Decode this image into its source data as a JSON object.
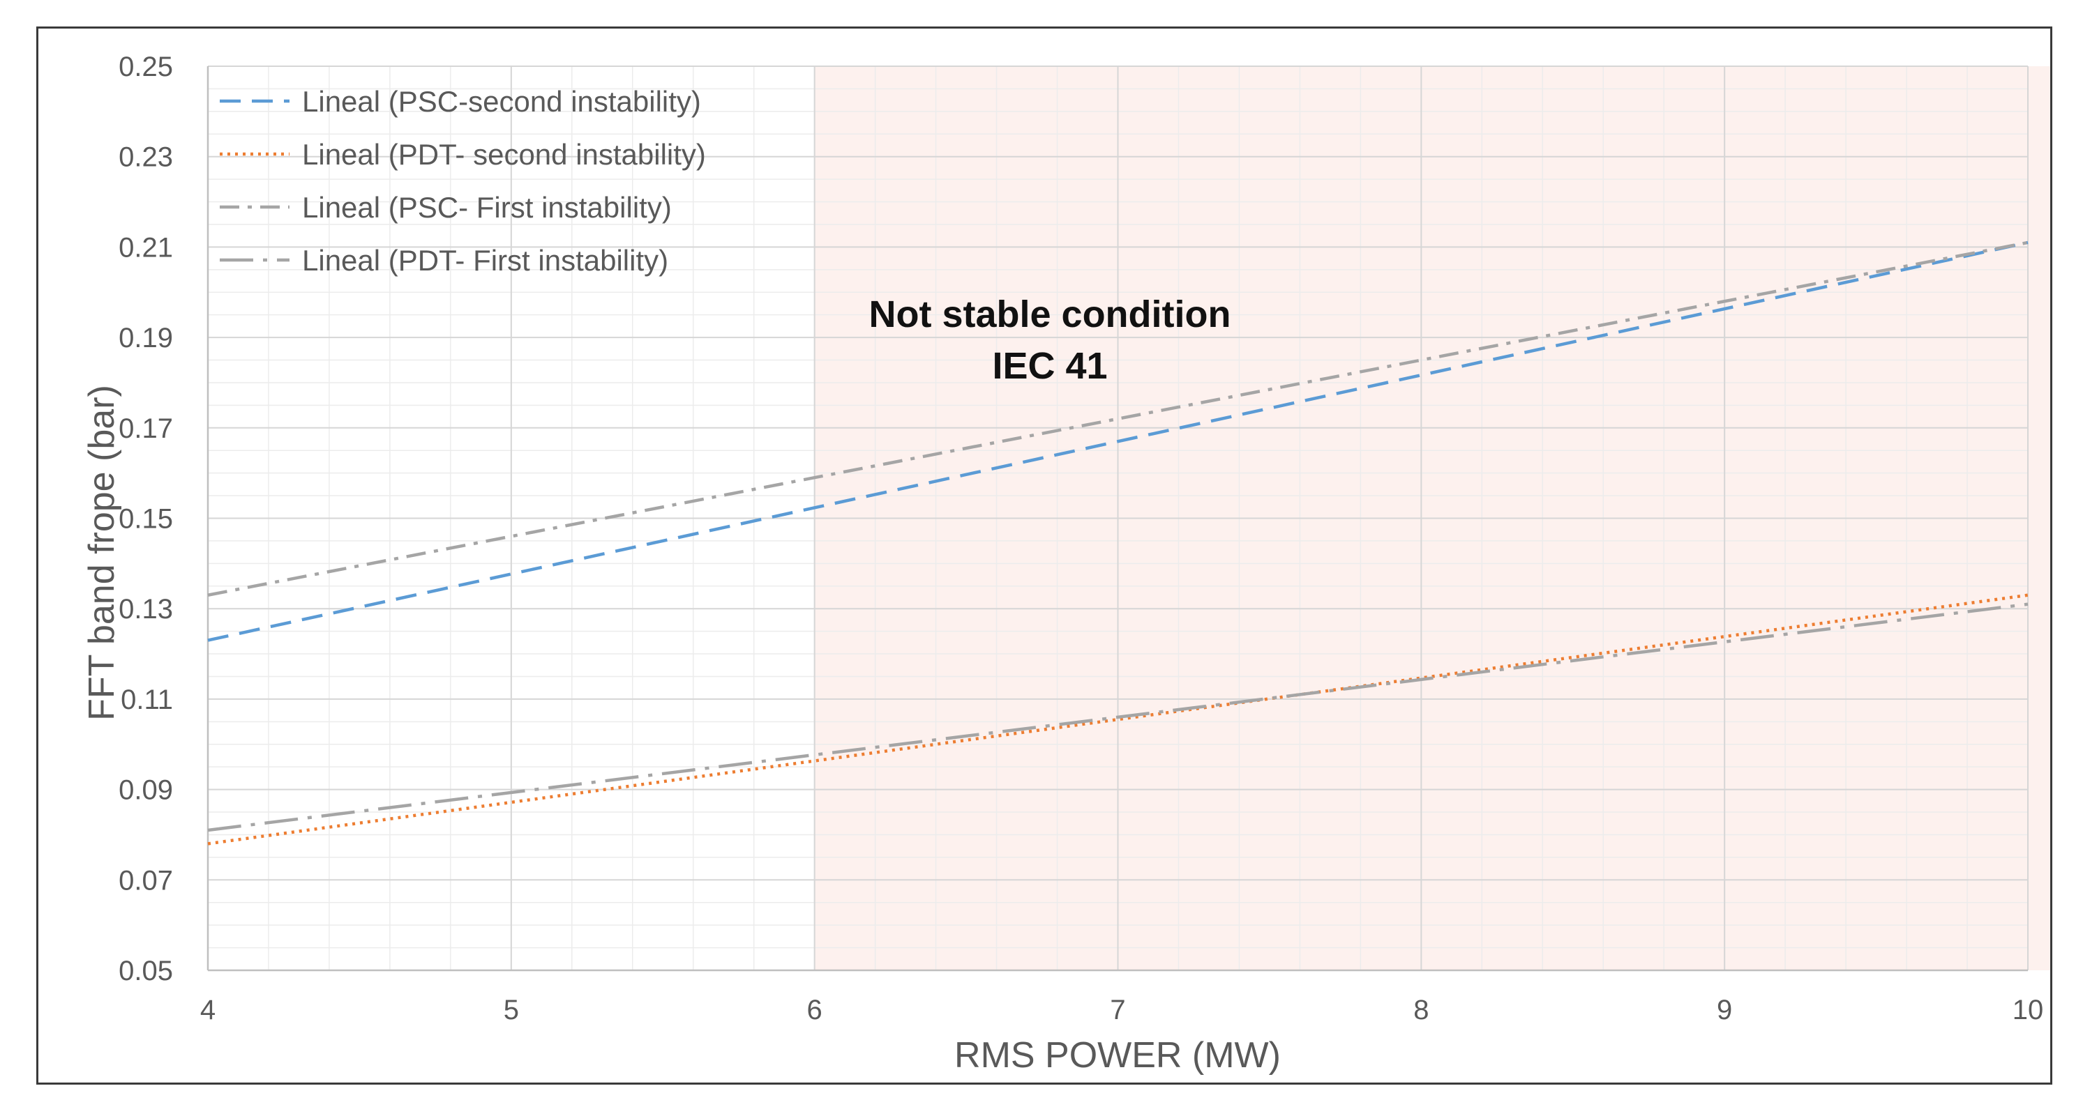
{
  "chart_data": {
    "type": "line",
    "title": "",
    "xlabel": "RMS POWER (MW)",
    "ylabel": "FFT band frope (bar)",
    "xlim": [
      4,
      10
    ],
    "ylim": [
      0.05,
      0.25
    ],
    "x_ticks": [
      4,
      5,
      6,
      7,
      8,
      9,
      10
    ],
    "y_ticks": [
      0.05,
      0.07,
      0.09,
      0.11,
      0.13,
      0.15,
      0.17,
      0.19,
      0.21,
      0.23,
      0.25
    ],
    "x_tick_labels": [
      "4",
      "5",
      "6",
      "7",
      "8",
      "9",
      "10"
    ],
    "y_tick_labels": [
      "0.05",
      "0.07",
      "0.09",
      "0.11",
      "0.13",
      "0.15",
      "0.17",
      "0.19",
      "0.21",
      "0.23",
      "0.25"
    ],
    "grid": true,
    "legend_position": "top-left",
    "shaded_region": {
      "x_range": [
        6,
        10
      ],
      "color": "#fdf1ee",
      "label_line1": "Not stable condition",
      "label_line2": "IEC 41"
    },
    "series": [
      {
        "name": "Lineal (PSC-second instability)",
        "x": [
          4,
          10
        ],
        "values": [
          0.123,
          0.211
        ],
        "color": "#5b9bd5",
        "dash": "dashed"
      },
      {
        "name": "Lineal (PDT- second instability)",
        "x": [
          4,
          10
        ],
        "values": [
          0.078,
          0.133
        ],
        "color": "#ed7d31",
        "dash": "dotted"
      },
      {
        "name": "Lineal (PSC- First instability)",
        "x": [
          4,
          10
        ],
        "values": [
          0.133,
          0.211
        ],
        "color": "#a5a5a5",
        "dash": "dashdot"
      },
      {
        "name": "Lineal (PDT- First instability)",
        "x": [
          4,
          10
        ],
        "values": [
          0.081,
          0.131
        ],
        "color": "#a5a5a5",
        "dash": "longdashdot"
      }
    ]
  }
}
